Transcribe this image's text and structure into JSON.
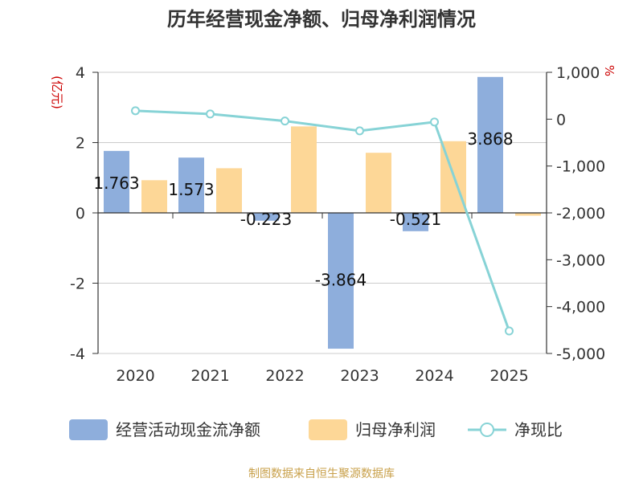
{
  "chart_data": {
    "type": "bar",
    "title": "历年经营现金净额、归母净利润情况",
    "categories": [
      "2020",
      "2021",
      "2022",
      "2023",
      "2024",
      "2025"
    ],
    "series": [
      {
        "name": "经营活动现金流净额",
        "kind": "bar",
        "axis": "left",
        "values": [
          1.763,
          1.573,
          -0.223,
          -3.864,
          -0.521,
          3.868
        ]
      },
      {
        "name": "归母净利润",
        "kind": "bar",
        "axis": "left",
        "values": [
          0.93,
          1.27,
          2.46,
          1.71,
          2.04,
          -0.08
        ]
      },
      {
        "name": "净现比",
        "kind": "line",
        "axis": "right",
        "values": [
          180,
          110,
          -40,
          -250,
          -60,
          -4520
        ]
      }
    ],
    "data_labels": [
      "1.763",
      "1.573",
      "-0.223",
      "-3.864",
      "-0.521",
      "3.868"
    ],
    "y_left": {
      "unit": "(亿元)",
      "ylim": [
        -4,
        4
      ],
      "ticks": [
        "4",
        "2",
        "0",
        "-2",
        "-4"
      ],
      "tick_values": [
        4,
        2,
        0,
        -2,
        -4
      ]
    },
    "y_right": {
      "unit": "%",
      "ylim": [
        -5000,
        1000
      ],
      "ticks": [
        "1,000",
        "0",
        "-1,000",
        "-2,000",
        "-3,000",
        "-4,000",
        "-5,000"
      ],
      "tick_values": [
        1000,
        0,
        -1000,
        -2000,
        -3000,
        -4000,
        -5000
      ]
    },
    "grid": true,
    "legend_position": "bottom",
    "colors": {
      "cash": "#8eaedc",
      "profit": "#fdd797",
      "ratio": "#87d3d6",
      "unit": "#cc0000",
      "source": "#c8a04a",
      "axis": "#333333",
      "grid": "#cccccc"
    }
  },
  "legend": {
    "items": [
      "经营活动现金流净额",
      "归母净利润",
      "净现比"
    ]
  },
  "footer": {
    "source": "制图数据来自恒生聚源数据库"
  }
}
